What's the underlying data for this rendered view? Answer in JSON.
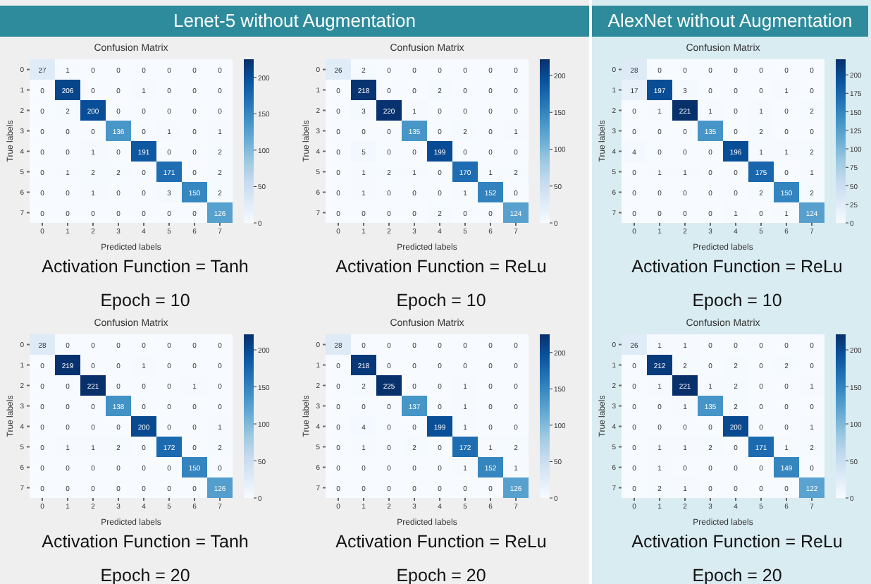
{
  "chart_data": [
    {
      "type": "heatmap",
      "title": "Confusion Matrix",
      "xlabel": "Predicted labels",
      "ylabel": "True labels",
      "categories": [
        "0",
        "1",
        "2",
        "3",
        "4",
        "5",
        "6",
        "7"
      ],
      "y_categories": [
        "0",
        "1",
        "2",
        "3",
        "4",
        "5",
        "6",
        "7"
      ],
      "clim": [
        0,
        225
      ],
      "cticks": [
        0,
        50,
        100,
        150,
        200
      ],
      "data_labels": true,
      "annotations": [
        "Lenet-5 without Augmentation",
        "Activation Function = Tanh",
        "Epoch = 10"
      ],
      "cells": [
        [
          27,
          1,
          0,
          0,
          0,
          0,
          0,
          0
        ],
        [
          0,
          206,
          0,
          0,
          1,
          0,
          0,
          0
        ],
        [
          0,
          2,
          200,
          0,
          0,
          0,
          0,
          0
        ],
        [
          0,
          0,
          0,
          136,
          0,
          1,
          0,
          1
        ],
        [
          0,
          0,
          1,
          0,
          191,
          0,
          0,
          2
        ],
        [
          0,
          1,
          2,
          2,
          0,
          171,
          0,
          2
        ],
        [
          0,
          0,
          1,
          0,
          0,
          3,
          150,
          2
        ],
        [
          0,
          0,
          0,
          0,
          0,
          0,
          0,
          126
        ]
      ]
    },
    {
      "type": "heatmap",
      "title": "Confusion Matrix",
      "xlabel": "Predicted labels",
      "ylabel": "True labels",
      "categories": [
        "0",
        "1",
        "2",
        "3",
        "4",
        "5",
        "6",
        "7"
      ],
      "y_categories": [
        "0",
        "1",
        "2",
        "3",
        "4",
        "5",
        "6",
        "7"
      ],
      "clim": [
        0,
        222
      ],
      "cticks": [
        0,
        50,
        100,
        150,
        200
      ],
      "data_labels": true,
      "annotations": [
        "Activation Function = ReLu",
        "Epoch = 10"
      ],
      "cells": [
        [
          26,
          2,
          0,
          0,
          0,
          0,
          0,
          0
        ],
        [
          0,
          218,
          0,
          0,
          2,
          0,
          0,
          0
        ],
        [
          0,
          3,
          220,
          1,
          0,
          0,
          0,
          0
        ],
        [
          0,
          0,
          0,
          135,
          0,
          2,
          0,
          1
        ],
        [
          0,
          5,
          0,
          0,
          199,
          0,
          0,
          0
        ],
        [
          0,
          1,
          2,
          1,
          0,
          170,
          1,
          2
        ],
        [
          0,
          1,
          0,
          0,
          0,
          1,
          152,
          0
        ],
        [
          0,
          0,
          0,
          0,
          2,
          0,
          0,
          124
        ]
      ]
    },
    {
      "type": "heatmap",
      "title": "Confusion Matrix",
      "xlabel": "Predicted labels",
      "ylabel": "True labels",
      "categories": [
        "0",
        "1",
        "2",
        "3",
        "4",
        "5",
        "6",
        "7"
      ],
      "y_categories": [
        "0",
        "1",
        "2",
        "3",
        "4",
        "5",
        "6",
        "7"
      ],
      "clim": [
        0,
        221
      ],
      "cticks": [
        0,
        25,
        50,
        75,
        100,
        125,
        150,
        175,
        200
      ],
      "data_labels": true,
      "annotations": [
        "AlexNet without Augmentation",
        "Activation Function = ReLu",
        "Epoch = 10"
      ],
      "cells": [
        [
          28,
          0,
          0,
          0,
          0,
          0,
          0,
          0
        ],
        [
          17,
          197,
          3,
          0,
          0,
          0,
          1,
          0
        ],
        [
          0,
          1,
          221,
          1,
          0,
          1,
          0,
          2
        ],
        [
          0,
          0,
          0,
          135,
          0,
          2,
          0,
          0
        ],
        [
          4,
          0,
          0,
          0,
          196,
          1,
          1,
          2
        ],
        [
          0,
          1,
          1,
          0,
          0,
          175,
          0,
          1
        ],
        [
          0,
          0,
          0,
          0,
          0,
          2,
          150,
          2
        ],
        [
          0,
          0,
          0,
          0,
          1,
          0,
          1,
          124
        ]
      ]
    },
    {
      "type": "heatmap",
      "title": "Confusion Matrix",
      "xlabel": "Predicted labels",
      "ylabel": "True labels",
      "categories": [
        "0",
        "1",
        "2",
        "3",
        "4",
        "5",
        "6",
        "7"
      ],
      "y_categories": [
        "0",
        "1",
        "2",
        "3",
        "4",
        "5",
        "6",
        "7"
      ],
      "clim": [
        0,
        221
      ],
      "cticks": [
        0,
        50,
        100,
        150,
        200
      ],
      "data_labels": true,
      "annotations": [
        "Activation Function = Tanh",
        "Epoch = 20"
      ],
      "cells": [
        [
          28,
          0,
          0,
          0,
          0,
          0,
          0,
          0
        ],
        [
          0,
          219,
          0,
          0,
          1,
          0,
          0,
          0
        ],
        [
          0,
          0,
          221,
          0,
          0,
          0,
          1,
          0
        ],
        [
          0,
          0,
          0,
          138,
          0,
          0,
          0,
          0
        ],
        [
          0,
          0,
          0,
          0,
          200,
          0,
          0,
          1
        ],
        [
          0,
          1,
          1,
          2,
          0,
          172,
          0,
          2
        ],
        [
          0,
          0,
          0,
          0,
          0,
          0,
          150,
          0
        ],
        [
          0,
          0,
          0,
          0,
          0,
          0,
          0,
          126
        ]
      ]
    },
    {
      "type": "heatmap",
      "title": "Confusion Matrix",
      "xlabel": "Predicted labels",
      "ylabel": "True labels",
      "categories": [
        "0",
        "1",
        "2",
        "3",
        "4",
        "5",
        "6",
        "7"
      ],
      "y_categories": [
        "0",
        "1",
        "2",
        "3",
        "4",
        "5",
        "6",
        "7"
      ],
      "clim": [
        0,
        225
      ],
      "cticks": [
        0,
        50,
        100,
        150,
        200
      ],
      "data_labels": true,
      "annotations": [
        "Activation Function = ReLu",
        "Epoch = 20"
      ],
      "cells": [
        [
          28,
          0,
          0,
          0,
          0,
          0,
          0,
          0
        ],
        [
          0,
          218,
          0,
          0,
          0,
          0,
          0,
          0
        ],
        [
          0,
          2,
          225,
          0,
          0,
          1,
          0,
          0
        ],
        [
          0,
          0,
          0,
          137,
          0,
          1,
          0,
          0
        ],
        [
          0,
          4,
          0,
          0,
          199,
          1,
          0,
          0
        ],
        [
          0,
          1,
          0,
          2,
          0,
          172,
          1,
          2
        ],
        [
          0,
          0,
          0,
          0,
          0,
          1,
          152,
          1
        ],
        [
          0,
          0,
          0,
          0,
          0,
          0,
          0,
          126
        ]
      ]
    },
    {
      "type": "heatmap",
      "title": "Confusion Matrix",
      "xlabel": "Predicted labels",
      "ylabel": "True labels",
      "categories": [
        "0",
        "1",
        "2",
        "3",
        "4",
        "5",
        "6",
        "7"
      ],
      "y_categories": [
        "0",
        "1",
        "2",
        "3",
        "4",
        "5",
        "6",
        "7"
      ],
      "clim": [
        0,
        221
      ],
      "cticks": [
        0,
        50,
        100,
        150,
        200
      ],
      "data_labels": true,
      "annotations": [
        "Activation Function = ReLu",
        "Epoch = 20"
      ],
      "cells": [
        [
          26,
          1,
          1,
          0,
          0,
          0,
          0,
          0
        ],
        [
          0,
          212,
          2,
          0,
          2,
          0,
          2,
          0
        ],
        [
          0,
          1,
          221,
          1,
          2,
          0,
          0,
          1
        ],
        [
          0,
          0,
          1,
          135,
          2,
          0,
          0,
          0
        ],
        [
          0,
          0,
          0,
          0,
          200,
          0,
          0,
          1
        ],
        [
          0,
          1,
          1,
          2,
          0,
          171,
          1,
          2
        ],
        [
          0,
          1,
          0,
          0,
          0,
          0,
          149,
          0
        ],
        [
          0,
          2,
          1,
          0,
          0,
          0,
          0,
          122
        ]
      ]
    }
  ]
}
